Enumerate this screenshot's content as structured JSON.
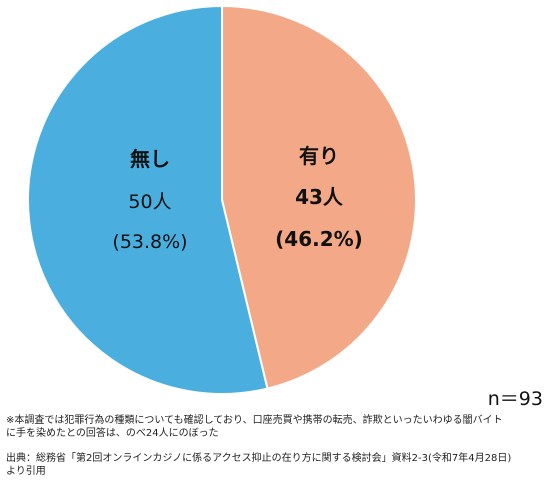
{
  "chart_data": {
    "type": "pie",
    "slices": [
      {
        "label": "有り",
        "count_label": "43人",
        "pct_label": "(46.2%)",
        "value": 43,
        "percent": 46.2,
        "color": "#f3a987"
      },
      {
        "label": "無し",
        "count_label": "50人",
        "pct_label": "(53.8%)",
        "value": 50,
        "percent": 53.8,
        "color": "#4aaedf"
      }
    ],
    "start": "12 o'clock, clockwise",
    "legend": "none"
  },
  "n_label": "n＝93",
  "note": {
    "line1": "※本調査では犯罪行為の種類についても確認しており、口座売買や携帯の転売、詐欺といったいわゆる闇バイト",
    "line2": "に手を染めたとの回答は、のべ24人にのぼった"
  },
  "source": {
    "line1": "出典：総務省「第2回オンラインカジノに係るアクセス抑止の在り方に関する検討会」資料2-3(令和7年4月28日)",
    "line2": "より引用"
  }
}
